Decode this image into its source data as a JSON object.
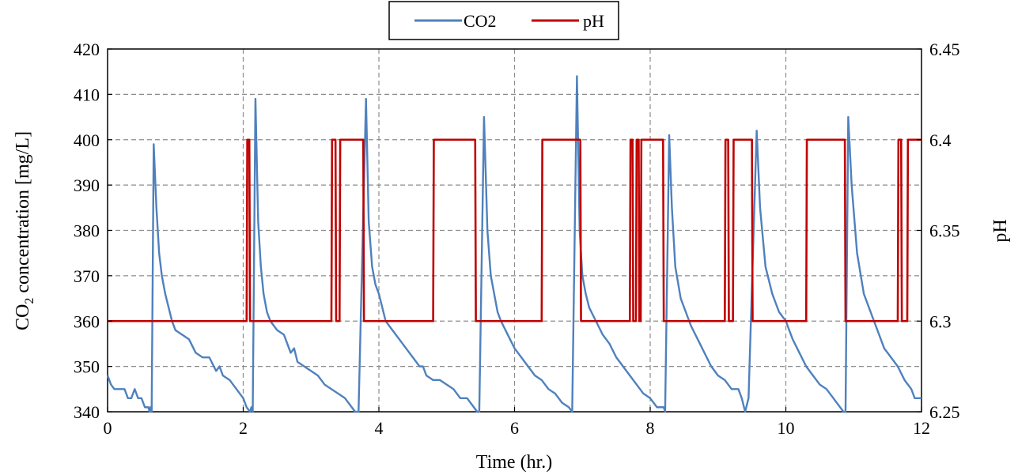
{
  "chart_data": {
    "type": "line",
    "xlabel": "Time (hr.)",
    "ylabel_left_main": "CO",
    "ylabel_left_sub": "2",
    "ylabel_left_rest": " concentration [mg/L]",
    "ylabel_right": "pH",
    "xlim": [
      0,
      12
    ],
    "ylim_left": [
      340,
      420
    ],
    "ylim_right": [
      6.25,
      6.45
    ],
    "x_ticks": [
      "0",
      "2",
      "4",
      "6",
      "8",
      "10",
      "12"
    ],
    "y_left_ticks": [
      "340",
      "350",
      "360",
      "370",
      "380",
      "390",
      "400",
      "410",
      "420"
    ],
    "y_right_ticks": [
      "6.25",
      "6.3",
      "6.35",
      "6.4",
      "6.45"
    ],
    "grid": true,
    "legend_placement": "top-center",
    "series": [
      {
        "name": "CO2",
        "axis": "left",
        "color": "#4f81bd",
        "points": [
          [
            0,
            348
          ],
          [
            0.05,
            346
          ],
          [
            0.1,
            345
          ],
          [
            0.25,
            345
          ],
          [
            0.3,
            343
          ],
          [
            0.35,
            343
          ],
          [
            0.4,
            345
          ],
          [
            0.45,
            343
          ],
          [
            0.5,
            343
          ],
          [
            0.55,
            341
          ],
          [
            0.6,
            341
          ],
          [
            0.62,
            340
          ],
          [
            0.63,
            341
          ],
          [
            0.65,
            340
          ],
          [
            0.68,
            399
          ],
          [
            0.72,
            385
          ],
          [
            0.76,
            375
          ],
          [
            0.8,
            370
          ],
          [
            0.85,
            366
          ],
          [
            0.9,
            363
          ],
          [
            0.95,
            360
          ],
          [
            1.0,
            358
          ],
          [
            1.1,
            357
          ],
          [
            1.2,
            356
          ],
          [
            1.3,
            353
          ],
          [
            1.4,
            352
          ],
          [
            1.5,
            352
          ],
          [
            1.6,
            349
          ],
          [
            1.65,
            350
          ],
          [
            1.7,
            348
          ],
          [
            1.8,
            347
          ],
          [
            1.9,
            345
          ],
          [
            2.0,
            343
          ],
          [
            2.05,
            341
          ],
          [
            2.1,
            340
          ],
          [
            2.12,
            341
          ],
          [
            2.14,
            340
          ],
          [
            2.18,
            409
          ],
          [
            2.22,
            382
          ],
          [
            2.26,
            372
          ],
          [
            2.3,
            366
          ],
          [
            2.35,
            362
          ],
          [
            2.4,
            360
          ],
          [
            2.5,
            358
          ],
          [
            2.6,
            357
          ],
          [
            2.65,
            355
          ],
          [
            2.7,
            353
          ],
          [
            2.75,
            354
          ],
          [
            2.8,
            351
          ],
          [
            2.9,
            350
          ],
          [
            3.0,
            349
          ],
          [
            3.1,
            348
          ],
          [
            3.2,
            346
          ],
          [
            3.3,
            345
          ],
          [
            3.4,
            344
          ],
          [
            3.5,
            343
          ],
          [
            3.6,
            341
          ],
          [
            3.65,
            340
          ],
          [
            3.7,
            340
          ],
          [
            3.81,
            409
          ],
          [
            3.85,
            382
          ],
          [
            3.9,
            372
          ],
          [
            3.95,
            368
          ],
          [
            4.0,
            366
          ],
          [
            4.05,
            363
          ],
          [
            4.1,
            360
          ],
          [
            4.2,
            358
          ],
          [
            4.3,
            356
          ],
          [
            4.4,
            354
          ],
          [
            4.5,
            352
          ],
          [
            4.6,
            350
          ],
          [
            4.65,
            350
          ],
          [
            4.7,
            348
          ],
          [
            4.8,
            347
          ],
          [
            4.9,
            347
          ],
          [
            5.0,
            346
          ],
          [
            5.1,
            345
          ],
          [
            5.2,
            343
          ],
          [
            5.3,
            343
          ],
          [
            5.4,
            341
          ],
          [
            5.45,
            340
          ],
          [
            5.48,
            340
          ],
          [
            5.55,
            405
          ],
          [
            5.6,
            380
          ],
          [
            5.65,
            370
          ],
          [
            5.7,
            366
          ],
          [
            5.75,
            362
          ],
          [
            5.8,
            360
          ],
          [
            5.9,
            357
          ],
          [
            6.0,
            354
          ],
          [
            6.1,
            352
          ],
          [
            6.2,
            350
          ],
          [
            6.3,
            348
          ],
          [
            6.4,
            347
          ],
          [
            6.5,
            345
          ],
          [
            6.6,
            344
          ],
          [
            6.7,
            342
          ],
          [
            6.8,
            341
          ],
          [
            6.85,
            340
          ],
          [
            6.92,
            414
          ],
          [
            6.96,
            380
          ],
          [
            7.0,
            370
          ],
          [
            7.05,
            366
          ],
          [
            7.1,
            363
          ],
          [
            7.2,
            360
          ],
          [
            7.3,
            357
          ],
          [
            7.4,
            355
          ],
          [
            7.5,
            352
          ],
          [
            7.6,
            350
          ],
          [
            7.7,
            348
          ],
          [
            7.8,
            346
          ],
          [
            7.9,
            344
          ],
          [
            8.0,
            343
          ],
          [
            8.1,
            341
          ],
          [
            8.2,
            341
          ],
          [
            8.22,
            340
          ],
          [
            8.28,
            401
          ],
          [
            8.32,
            385
          ],
          [
            8.37,
            372
          ],
          [
            8.45,
            365
          ],
          [
            8.55,
            361
          ],
          [
            8.6,
            359
          ],
          [
            8.7,
            356
          ],
          [
            8.8,
            353
          ],
          [
            8.9,
            350
          ],
          [
            9.0,
            348
          ],
          [
            9.1,
            347
          ],
          [
            9.2,
            345
          ],
          [
            9.3,
            345
          ],
          [
            9.35,
            343
          ],
          [
            9.4,
            340
          ],
          [
            9.45,
            343
          ],
          [
            9.57,
            402
          ],
          [
            9.62,
            385
          ],
          [
            9.7,
            372
          ],
          [
            9.8,
            366
          ],
          [
            9.9,
            362
          ],
          [
            10.0,
            360
          ],
          [
            10.1,
            356
          ],
          [
            10.2,
            353
          ],
          [
            10.3,
            350
          ],
          [
            10.4,
            348
          ],
          [
            10.5,
            346
          ],
          [
            10.6,
            345
          ],
          [
            10.7,
            343
          ],
          [
            10.8,
            341
          ],
          [
            10.85,
            340
          ],
          [
            10.88,
            340
          ],
          [
            10.92,
            405
          ],
          [
            10.97,
            390
          ],
          [
            11.05,
            375
          ],
          [
            11.15,
            366
          ],
          [
            11.25,
            362
          ],
          [
            11.35,
            358
          ],
          [
            11.45,
            354
          ],
          [
            11.55,
            352
          ],
          [
            11.65,
            350
          ],
          [
            11.75,
            347
          ],
          [
            11.85,
            345
          ],
          [
            11.9,
            343
          ],
          [
            12.0,
            343
          ]
        ]
      },
      {
        "name": "pH",
        "axis": "right",
        "color": "#c00000",
        "points": [
          [
            0,
            6.3
          ],
          [
            2.05,
            6.3
          ],
          [
            2.06,
            6.4
          ],
          [
            2.09,
            6.4
          ],
          [
            2.1,
            6.3
          ],
          [
            3.3,
            6.3
          ],
          [
            3.31,
            6.4
          ],
          [
            3.36,
            6.4
          ],
          [
            3.37,
            6.3
          ],
          [
            3.42,
            6.3
          ],
          [
            3.43,
            6.4
          ],
          [
            3.77,
            6.4
          ],
          [
            3.78,
            6.3
          ],
          [
            4.8,
            6.3
          ],
          [
            4.81,
            6.4
          ],
          [
            5.42,
            6.4
          ],
          [
            5.43,
            6.3
          ],
          [
            6.4,
            6.3
          ],
          [
            6.41,
            6.4
          ],
          [
            6.97,
            6.4
          ],
          [
            6.98,
            6.3
          ],
          [
            7.7,
            6.3
          ],
          [
            7.71,
            6.4
          ],
          [
            7.74,
            6.4
          ],
          [
            7.75,
            6.3
          ],
          [
            7.79,
            6.3
          ],
          [
            7.8,
            6.4
          ],
          [
            7.83,
            6.4
          ],
          [
            7.84,
            6.3
          ],
          [
            7.86,
            6.3
          ],
          [
            7.87,
            6.4
          ],
          [
            8.19,
            6.4
          ],
          [
            8.2,
            6.3
          ],
          [
            9.1,
            6.3
          ],
          [
            9.11,
            6.4
          ],
          [
            9.15,
            6.4
          ],
          [
            9.16,
            6.3
          ],
          [
            9.22,
            6.3
          ],
          [
            9.23,
            6.4
          ],
          [
            9.5,
            6.4
          ],
          [
            9.51,
            6.3
          ],
          [
            10.3,
            6.3
          ],
          [
            10.31,
            6.4
          ],
          [
            10.87,
            6.4
          ],
          [
            10.88,
            6.3
          ],
          [
            11.65,
            6.3
          ],
          [
            11.66,
            6.4
          ],
          [
            11.7,
            6.4
          ],
          [
            11.71,
            6.3
          ],
          [
            11.79,
            6.3
          ],
          [
            11.8,
            6.4
          ],
          [
            12.0,
            6.4
          ]
        ]
      }
    ]
  }
}
